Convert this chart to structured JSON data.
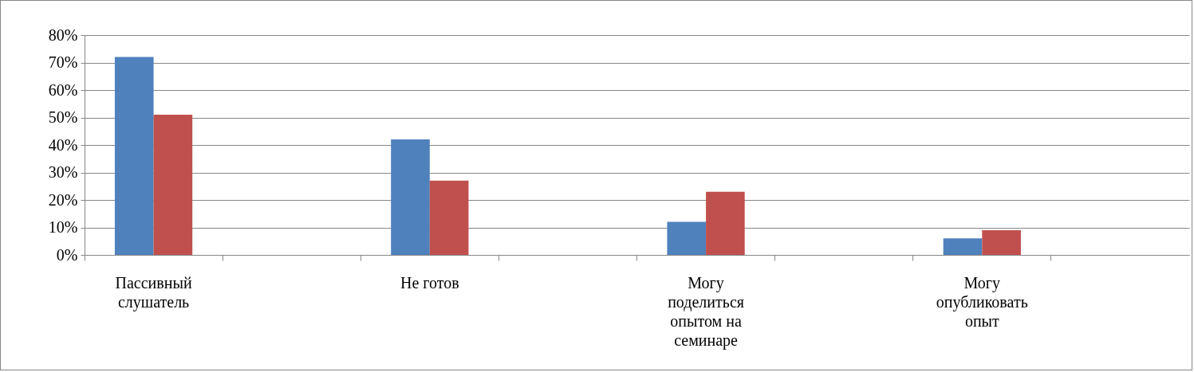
{
  "chart_data": {
    "type": "bar",
    "categories": [
      "Пассивный слушатель",
      null,
      "Не готов",
      null,
      "Могу поделиться опытом на семинаре",
      null,
      "Могу опубликовать опыт",
      null
    ],
    "series": [
      {
        "color": "#4f81bd",
        "values": [
          72,
          null,
          42,
          null,
          12,
          null,
          6,
          null
        ]
      },
      {
        "color": "#c0504d",
        "values": [
          51,
          null,
          27,
          null,
          23,
          null,
          9,
          null
        ]
      }
    ],
    "ylim": [
      0,
      80
    ],
    "yticks": [
      {
        "value": 0,
        "label": "0%"
      },
      {
        "value": 10,
        "label": "10%"
      },
      {
        "value": 20,
        "label": "20%"
      },
      {
        "value": 30,
        "label": "30%"
      },
      {
        "value": 40,
        "label": "40%"
      },
      {
        "value": 50,
        "label": "50%"
      },
      {
        "value": 60,
        "label": "60%"
      },
      {
        "value": 70,
        "label": "70%"
      },
      {
        "value": 80,
        "label": "80%"
      }
    ],
    "grid": "y",
    "legend": false
  }
}
